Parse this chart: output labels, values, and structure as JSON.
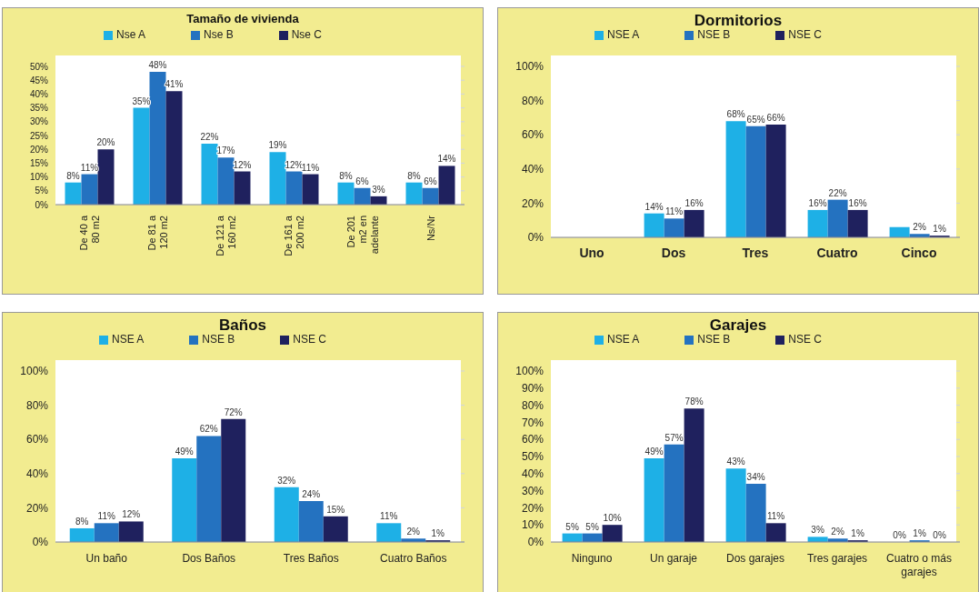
{
  "chart_data": [
    {
      "type": "bar",
      "title": "Tamaño de vivienda",
      "categories": [
        "De 40 a 80 m2",
        "De 81 a 120 m2",
        "De 121 a 160 m2",
        "De 161 a 200 m2",
        "De 201 m2 en adelante",
        "Ns/Nr"
      ],
      "series": [
        {
          "name": "Nse A",
          "color": "#1eb0e6",
          "values": [
            8,
            35,
            22,
            19,
            8,
            8
          ],
          "value_labels": [
            "8%",
            "35%",
            "22%",
            "19%",
            "8%",
            "8%"
          ]
        },
        {
          "name": "Nse B",
          "color": "#2472c0",
          "values": [
            11,
            48,
            17,
            12,
            6,
            6
          ],
          "value_labels": [
            "11%",
            "48%",
            "17%",
            "12%",
            "6%",
            "6%"
          ]
        },
        {
          "name": "Nse C",
          "color": "#1f215e",
          "values": [
            20,
            41,
            12,
            11,
            3,
            14
          ],
          "value_labels": [
            "20%",
            "41%",
            "12%",
            "11%",
            "3%",
            "14%"
          ]
        }
      ],
      "ylim": [
        0,
        50
      ],
      "yticks": [
        {
          "value": 0,
          "label": "0%"
        },
        {
          "value": 5,
          "label": "5%"
        },
        {
          "value": 10,
          "label": "10%"
        },
        {
          "value": 15,
          "label": "15%"
        },
        {
          "value": 20,
          "label": "20%"
        },
        {
          "value": 25,
          "label": "25%"
        },
        {
          "value": 30,
          "label": "30%"
        },
        {
          "value": 35,
          "label": "35%"
        },
        {
          "value": 40,
          "label": "40%"
        },
        {
          "value": 45,
          "label": "45%"
        },
        {
          "value": 50,
          "label": "50%"
        }
      ],
      "grid": "y",
      "legend": "top"
    },
    {
      "type": "bar",
      "title": "Dormitorios",
      "categories": [
        "Uno",
        "Dos",
        "Tres",
        "Cuatro",
        "Cinco"
      ],
      "series": [
        {
          "name": "NSE A",
          "color": "#1eb0e6",
          "values": [
            null,
            14,
            68,
            16,
            6
          ],
          "value_labels": [
            null,
            "14%",
            "68%",
            "16%",
            null
          ]
        },
        {
          "name": "NSE B",
          "color": "#2472c0",
          "values": [
            null,
            11,
            65,
            22,
            2
          ],
          "value_labels": [
            null,
            "11%",
            "65%",
            "22%",
            "2%"
          ]
        },
        {
          "name": "NSE C",
          "color": "#1f215e",
          "values": [
            null,
            16,
            66,
            16,
            1
          ],
          "value_labels": [
            null,
            "16%",
            "66%",
            "16%",
            "1%"
          ]
        }
      ],
      "ylim": [
        0,
        100
      ],
      "yticks": [
        {
          "value": 0,
          "label": "0%"
        },
        {
          "value": 20,
          "label": "20%"
        },
        {
          "value": 40,
          "label": "40%"
        },
        {
          "value": 60,
          "label": "60%"
        },
        {
          "value": 80,
          "label": "80%"
        },
        {
          "value": 100,
          "label": "100%"
        }
      ],
      "grid": "y",
      "legend": "top"
    },
    {
      "type": "bar",
      "title": "Baños",
      "categories": [
        "Un baño",
        "Dos Baños",
        "Tres Baños",
        "Cuatro Baños"
      ],
      "series": [
        {
          "name": "NSE A",
          "color": "#1eb0e6",
          "values": [
            8,
            49,
            32,
            11
          ],
          "value_labels": [
            "8%",
            "49%",
            "32%",
            "11%"
          ]
        },
        {
          "name": "NSE B",
          "color": "#2472c0",
          "values": [
            11,
            62,
            24,
            2
          ],
          "value_labels": [
            "11%",
            "62%",
            "24%",
            "2%"
          ]
        },
        {
          "name": "NSE C",
          "color": "#1f215e",
          "values": [
            12,
            72,
            15,
            1
          ],
          "value_labels": [
            "12%",
            "72%",
            "15%",
            "1%"
          ]
        }
      ],
      "ylim": [
        0,
        100
      ],
      "yticks": [
        {
          "value": 0,
          "label": "0%"
        },
        {
          "value": 20,
          "label": "20%"
        },
        {
          "value": 40,
          "label": "40%"
        },
        {
          "value": 60,
          "label": "60%"
        },
        {
          "value": 80,
          "label": "80%"
        },
        {
          "value": 100,
          "label": "100%"
        }
      ],
      "grid": "y",
      "legend": "top"
    },
    {
      "type": "bar",
      "title": "Garajes",
      "categories": [
        "Ninguno",
        "Un garaje",
        "Dos garajes",
        "Tres garajes",
        "Cuatro o más garajes"
      ],
      "series": [
        {
          "name": "NSE A",
          "color": "#1eb0e6",
          "values": [
            5,
            49,
            43,
            3,
            0
          ],
          "value_labels": [
            "5%",
            "49%",
            "43%",
            "3%",
            "0%"
          ]
        },
        {
          "name": "NSE B",
          "color": "#2472c0",
          "values": [
            5,
            57,
            34,
            2,
            1
          ],
          "value_labels": [
            "5%",
            "57%",
            "34%",
            "2%",
            "1%"
          ]
        },
        {
          "name": "NSE C",
          "color": "#1f215e",
          "values": [
            10,
            78,
            11,
            1,
            0
          ],
          "value_labels": [
            "10%",
            "78%",
            "11%",
            "1%",
            "0%"
          ]
        }
      ],
      "ylim": [
        0,
        100
      ],
      "yticks": [
        {
          "value": 0,
          "label": "0%"
        },
        {
          "value": 10,
          "label": "10%"
        },
        {
          "value": 20,
          "label": "20%"
        },
        {
          "value": 30,
          "label": "30%"
        },
        {
          "value": 40,
          "label": "40%"
        },
        {
          "value": 50,
          "label": "50%"
        },
        {
          "value": 60,
          "label": "60%"
        },
        {
          "value": 70,
          "label": "70%"
        },
        {
          "value": 80,
          "label": "80%"
        },
        {
          "value": 90,
          "label": "90%"
        },
        {
          "value": 100,
          "label": "100%"
        }
      ],
      "grid": "y",
      "legend": "top"
    }
  ]
}
